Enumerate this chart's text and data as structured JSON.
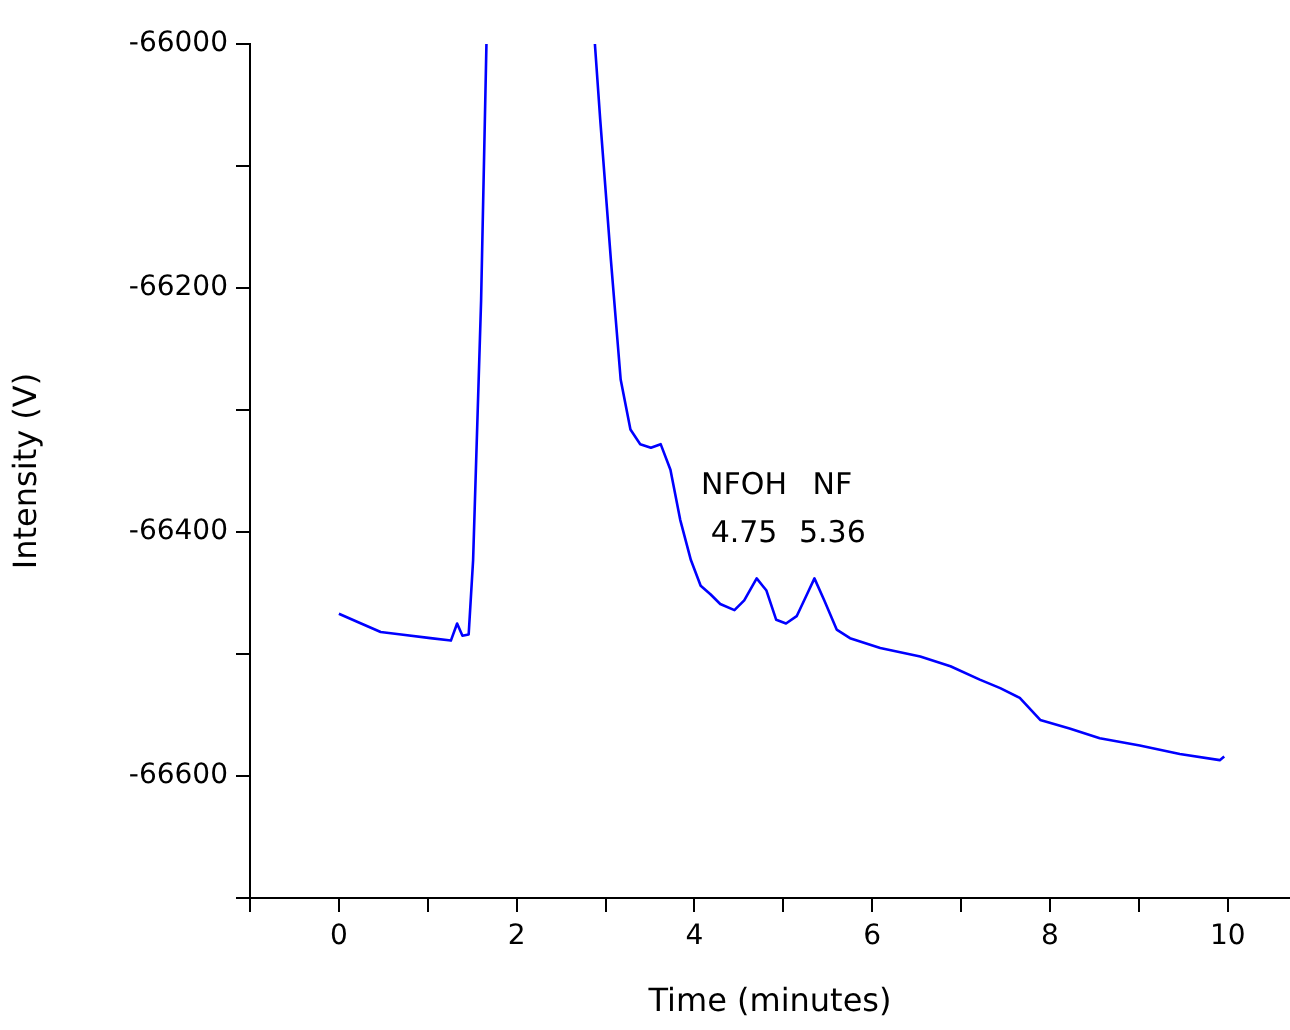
{
  "chart_data": {
    "type": "line",
    "xlabel": "Time (minutes)",
    "ylabel": "Intensity (V)",
    "x": [
      0,
      0.25,
      0.47,
      0.7,
      1.03,
      1.26,
      1.33,
      1.39,
      1.46,
      1.51,
      1.6,
      1.66,
      2.3,
      2.88,
      2.94,
      3.06,
      3.17,
      3.28,
      3.39,
      3.51,
      3.62,
      3.73,
      3.84,
      3.96,
      4.07,
      4.18,
      4.29,
      4.45,
      4.56,
      4.7,
      4.81,
      4.92,
      5.03,
      5.15,
      5.26,
      5.35,
      5.46,
      5.6,
      5.75,
      6.09,
      6.54,
      6.88,
      7.21,
      7.44,
      7.66,
      7.89,
      8.22,
      8.56,
      9.01,
      9.46,
      9.91,
      9.96
    ],
    "series": [
      {
        "color": "#0000ff",
        "values": [
          -66467,
          -66475,
          -66482,
          -66484,
          -66487,
          -66489,
          -66475,
          -66485,
          -66484,
          -66423,
          -66210,
          -66000,
          null,
          -66000,
          -66062,
          -66177,
          -66275,
          -66316,
          -66328,
          -66331,
          -66328,
          -66349,
          -66390,
          -66423,
          -66444,
          -66451,
          -66459,
          -66464,
          -66456,
          -66438,
          -66448,
          -66472,
          -66475,
          -66469,
          -66452,
          -66438,
          -66456,
          -66480,
          -66487,
          -66495,
          -66502,
          -66510,
          -66521,
          -66528,
          -66536,
          -66554,
          -66561,
          -66569,
          -66575,
          -66582,
          -66587,
          -66584
        ]
      }
    ],
    "xlim": [
      -1,
      10.7
    ],
    "xticks": [
      {
        "value": -1,
        "label": null
      },
      0,
      {
        "value": 1,
        "label": null
      },
      2,
      {
        "value": 3,
        "label": null
      },
      4,
      {
        "value": 5,
        "label": null
      },
      6,
      {
        "value": 7,
        "label": null
      },
      8,
      {
        "value": 9,
        "label": null
      },
      10
    ],
    "ylim": [
      -66700,
      -66000
    ],
    "yticks": [
      {
        "value": -66700,
        "label": null
      },
      -66600,
      {
        "value": -66500,
        "label": null
      },
      -66400,
      {
        "value": -66300,
        "label": null
      },
      -66200,
      {
        "value": -66100,
        "label": null
      },
      -66000
    ],
    "annotations": [
      {
        "text": "NFOH\n4.75",
        "x": 4.75,
        "y": -66438
      },
      {
        "text": "NF\n5.36",
        "x": 5.36,
        "y": -66438
      }
    ],
    "grid": false,
    "legend": false,
    "marker": "none",
    "line_style": "solid"
  }
}
